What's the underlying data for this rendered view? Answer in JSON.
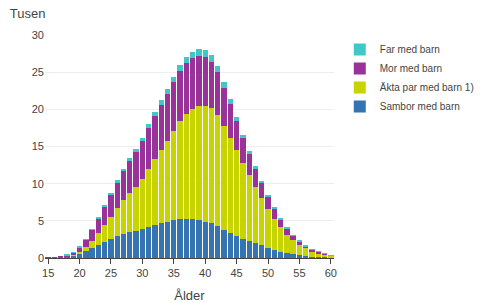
{
  "chart_data": {
    "type": "bar",
    "title": "Tusen",
    "xlabel": "Ålder",
    "x": [
      15,
      16,
      17,
      18,
      19,
      20,
      21,
      22,
      23,
      24,
      25,
      26,
      27,
      28,
      29,
      30,
      31,
      32,
      33,
      34,
      35,
      36,
      37,
      38,
      39,
      40,
      41,
      42,
      43,
      44,
      45,
      46,
      47,
      48,
      49,
      50,
      51,
      52,
      53,
      54,
      55,
      56,
      57,
      58,
      59,
      60
    ],
    "series": [
      {
        "name": "Sambor med barn",
        "color": "#3573B1",
        "values": [
          0.02,
          0.05,
          0.1,
          0.2,
          0.35,
          0.6,
          0.9,
          1.3,
          1.7,
          2.1,
          2.5,
          2.9,
          3.2,
          3.5,
          3.7,
          3.9,
          4.2,
          4.5,
          4.7,
          4.9,
          5.1,
          5.2,
          5.3,
          5.2,
          5.1,
          4.9,
          4.7,
          4.3,
          3.8,
          3.4,
          3.0,
          2.6,
          2.3,
          2.0,
          1.7,
          1.4,
          1.1,
          0.85,
          0.65,
          0.5,
          0.38,
          0.28,
          0.2,
          0.14,
          0.1,
          0.07
        ]
      },
      {
        "name": "Äkta par med barn 1)",
        "color": "#C8D400",
        "values": [
          0.0,
          0.0,
          0.0,
          0.05,
          0.1,
          0.25,
          0.55,
          1.0,
          1.6,
          2.3,
          3.0,
          3.8,
          4.6,
          5.3,
          5.9,
          6.7,
          7.8,
          8.8,
          9.8,
          10.8,
          12.0,
          13.2,
          14.1,
          14.8,
          15.3,
          15.6,
          15.5,
          15.0,
          14.0,
          12.8,
          11.5,
          10.2,
          8.9,
          7.6,
          6.4,
          5.2,
          4.2,
          3.3,
          2.5,
          1.9,
          1.4,
          1.0,
          0.7,
          0.5,
          0.33,
          0.2
        ]
      },
      {
        "name": "Mor med barn",
        "color": "#993399",
        "values": [
          0.01,
          0.03,
          0.06,
          0.15,
          0.3,
          0.6,
          1.0,
          1.5,
          2.0,
          2.5,
          3.0,
          3.5,
          3.9,
          4.3,
          4.7,
          5.1,
          5.5,
          5.8,
          6.1,
          6.4,
          6.6,
          6.8,
          6.9,
          6.9,
          6.8,
          6.6,
          6.2,
          5.7,
          5.1,
          4.5,
          3.9,
          3.3,
          2.8,
          2.4,
          2.0,
          1.65,
          1.3,
          1.0,
          0.8,
          0.6,
          0.45,
          0.33,
          0.24,
          0.17,
          0.12,
          0.08
        ]
      },
      {
        "name": "Far med barn",
        "color": "#40C8C8",
        "values": [
          0.0,
          0.0,
          0.0,
          0.01,
          0.02,
          0.04,
          0.07,
          0.1,
          0.13,
          0.17,
          0.2,
          0.25,
          0.3,
          0.35,
          0.4,
          0.45,
          0.5,
          0.55,
          0.6,
          0.65,
          0.7,
          0.75,
          0.8,
          0.85,
          0.9,
          0.9,
          0.88,
          0.83,
          0.75,
          0.65,
          0.55,
          0.47,
          0.4,
          0.33,
          0.27,
          0.22,
          0.18,
          0.14,
          0.11,
          0.08,
          0.06,
          0.05,
          0.04,
          0.03,
          0.02,
          0.01
        ]
      }
    ],
    "stacked": true,
    "xlim": [
      14.5,
      60.5
    ],
    "xticks": [
      15,
      20,
      25,
      30,
      35,
      40,
      45,
      50,
      55,
      60
    ],
    "ylim": [
      0,
      30
    ],
    "yticks": [
      0,
      5,
      10,
      15,
      20,
      25,
      30
    ],
    "grid": true,
    "legend": "upper right"
  }
}
